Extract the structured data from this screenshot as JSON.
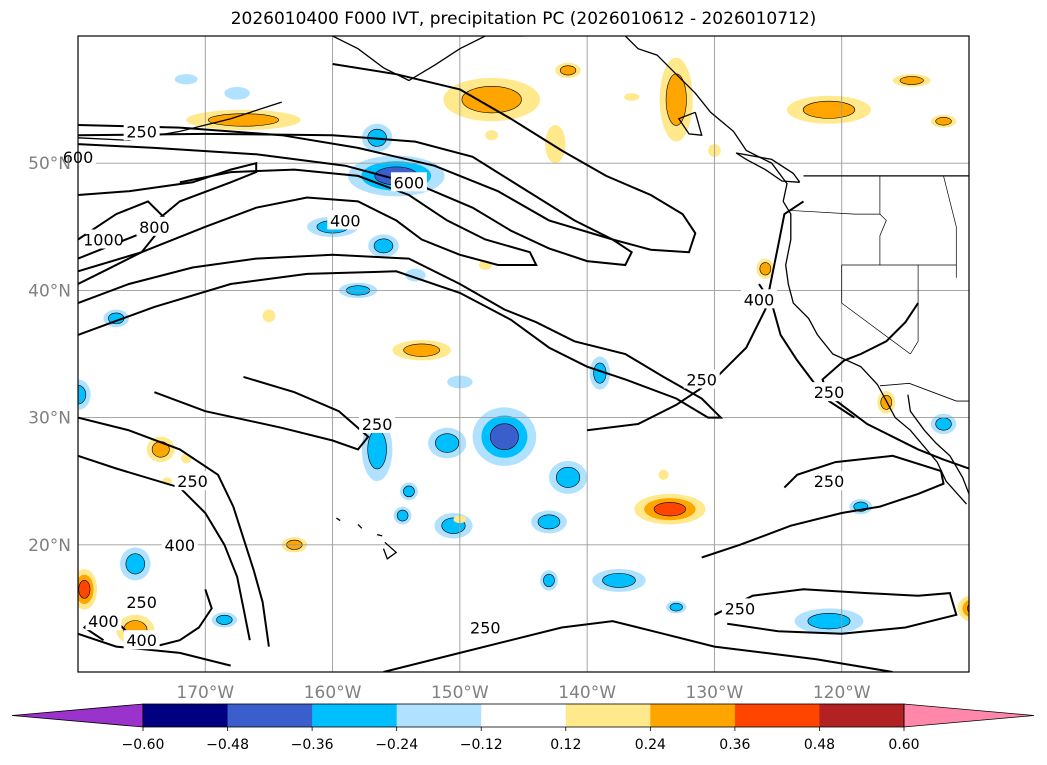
{
  "title": "2026010400 F000 IVT, precipitation PC (2026010612 - 2026010712)",
  "chart_data": {
    "type": "heatmap",
    "x_ticks": [
      "170°W",
      "160°W",
      "150°W",
      "140°W",
      "130°W",
      "120°W"
    ],
    "x_tick_values": [
      -170,
      -160,
      -150,
      -140,
      -130,
      -120
    ],
    "y_ticks": [
      "20°N",
      "30°N",
      "40°N",
      "50°N"
    ],
    "y_tick_values": [
      20,
      30,
      40,
      50
    ],
    "xlim": [
      -180,
      -110
    ],
    "ylim": [
      10,
      60
    ],
    "grid": true,
    "colorbar": {
      "tick_labels": [
        "−0.60",
        "−0.48",
        "−0.36",
        "−0.24",
        "−0.12",
        "0.12",
        "0.24",
        "0.36",
        "0.48",
        "0.60"
      ],
      "levels": [
        -0.6,
        -0.48,
        -0.36,
        -0.24,
        -0.12,
        0.12,
        0.24,
        0.36,
        0.48,
        0.6
      ],
      "colors": [
        "#9933cc",
        "#000080",
        "#3a5fcd",
        "#00bfff",
        "#b0e2ff",
        "#ffffff",
        "#ffe98c",
        "#ffa500",
        "#ff4500",
        "#b22222",
        "#ff88aa"
      ],
      "extend": "both"
    },
    "ivt_contour_labels": [
      {
        "text": "250",
        "lon": -175,
        "lat": 52.5
      },
      {
        "text": "600",
        "lon": -180,
        "lat": 50.5
      },
      {
        "text": "1000",
        "lon": -178,
        "lat": 44
      },
      {
        "text": "800",
        "lon": -174,
        "lat": 45
      },
      {
        "text": "400",
        "lon": -159,
        "lat": 45.5
      },
      {
        "text": "600",
        "lon": -154,
        "lat": 48.5
      },
      {
        "text": "400",
        "lon": -126.5,
        "lat": 39.3
      },
      {
        "text": "250",
        "lon": -131,
        "lat": 33
      },
      {
        "text": "250",
        "lon": -121,
        "lat": 32
      },
      {
        "text": "250",
        "lon": -156.5,
        "lat": 29.5
      },
      {
        "text": "250",
        "lon": -171,
        "lat": 25
      },
      {
        "text": "250",
        "lon": -121,
        "lat": 25
      },
      {
        "text": "400",
        "lon": -172,
        "lat": 20
      },
      {
        "text": "250",
        "lon": -175,
        "lat": 15.5
      },
      {
        "text": "400",
        "lon": -178,
        "lat": 14
      },
      {
        "text": "400",
        "lon": -175,
        "lat": 12.5
      },
      {
        "text": "250",
        "lon": -148,
        "lat": 13.5
      },
      {
        "text": "250",
        "lon": -128,
        "lat": 15
      }
    ],
    "precip_anomaly_blobs": [
      {
        "lon": -155,
        "lat": 49,
        "rx": 3.8,
        "ry": 1.6,
        "value": -0.4
      },
      {
        "lon": -156.5,
        "lat": 52,
        "rx": 1.2,
        "ry": 1.1,
        "value": -0.24
      },
      {
        "lon": -160,
        "lat": 45,
        "rx": 2,
        "ry": 0.8,
        "value": -0.3
      },
      {
        "lon": -156,
        "lat": 43.5,
        "rx": 1.2,
        "ry": 0.9,
        "value": -0.24
      },
      {
        "lon": -158,
        "lat": 40,
        "rx": 1.5,
        "ry": 0.6,
        "value": -0.25
      },
      {
        "lon": -153.5,
        "lat": 41.2,
        "rx": 0.8,
        "ry": 0.5,
        "value": -0.2
      },
      {
        "lon": -177,
        "lat": 37.8,
        "rx": 1,
        "ry": 0.7,
        "value": -0.24
      },
      {
        "lon": -180,
        "lat": 31.8,
        "rx": 1,
        "ry": 1.2,
        "value": -0.24
      },
      {
        "lon": -146.5,
        "lat": 28.5,
        "rx": 2.5,
        "ry": 2.3,
        "value": -0.38
      },
      {
        "lon": -151,
        "lat": 28,
        "rx": 1.5,
        "ry": 1.2,
        "value": -0.35
      },
      {
        "lon": -156.5,
        "lat": 27.5,
        "rx": 1.2,
        "ry": 2.5,
        "value": -0.3
      },
      {
        "lon": -141.5,
        "lat": 25.3,
        "rx": 1.5,
        "ry": 1.3,
        "value": -0.28
      },
      {
        "lon": -139,
        "lat": 33.5,
        "rx": 0.8,
        "ry": 1.3,
        "value": -0.28
      },
      {
        "lon": -150,
        "lat": 32.8,
        "rx": 1,
        "ry": 0.5,
        "value": -0.22
      },
      {
        "lon": -150.5,
        "lat": 21.5,
        "rx": 1.5,
        "ry": 1,
        "value": -0.3
      },
      {
        "lon": -154,
        "lat": 24.2,
        "rx": 0.7,
        "ry": 0.7,
        "value": -0.25
      },
      {
        "lon": -154.5,
        "lat": 22.3,
        "rx": 0.7,
        "ry": 0.7,
        "value": -0.25
      },
      {
        "lon": -143,
        "lat": 21.8,
        "rx": 1.4,
        "ry": 0.9,
        "value": -0.3
      },
      {
        "lon": -137.5,
        "lat": 17.2,
        "rx": 2.1,
        "ry": 0.9,
        "value": -0.35
      },
      {
        "lon": -143,
        "lat": 17.2,
        "rx": 0.7,
        "ry": 0.8,
        "value": -0.24
      },
      {
        "lon": -175.5,
        "lat": 18.5,
        "rx": 1.2,
        "ry": 1.3,
        "value": -0.3
      },
      {
        "lon": -121,
        "lat": 14,
        "rx": 2.7,
        "ry": 1,
        "value": -0.3
      },
      {
        "lon": -118.5,
        "lat": 23,
        "rx": 0.9,
        "ry": 0.6,
        "value": -0.24
      },
      {
        "lon": -133,
        "lat": 15.1,
        "rx": 0.8,
        "ry": 0.5,
        "value": -0.24
      },
      {
        "lon": -168.5,
        "lat": 14.1,
        "rx": 1,
        "ry": 0.6,
        "value": -0.25
      },
      {
        "lon": -167.5,
        "lat": 55.5,
        "rx": 1,
        "ry": 0.5,
        "value": -0.2
      },
      {
        "lon": -171.5,
        "lat": 56.6,
        "rx": 0.9,
        "ry": 0.4,
        "value": -0.18
      },
      {
        "lon": -112,
        "lat": 29.5,
        "rx": 1,
        "ry": 0.8,
        "value": -0.24
      }
    ],
    "precip_positive_blobs": [
      {
        "lon": -167,
        "lat": 53.4,
        "rx": 4.5,
        "ry": 0.8,
        "value": 0.3
      },
      {
        "lon": -147.5,
        "lat": 55,
        "rx": 3.8,
        "ry": 1.7,
        "value": 0.32
      },
      {
        "lon": -141.5,
        "lat": 57.3,
        "rx": 1,
        "ry": 0.6,
        "value": 0.28
      },
      {
        "lon": -136.5,
        "lat": 55.2,
        "rx": 0.6,
        "ry": 0.3,
        "value": 0.2
      },
      {
        "lon": -133,
        "lat": 55,
        "rx": 1.3,
        "ry": 3.3,
        "value": 0.3
      },
      {
        "lon": -121,
        "lat": 54.2,
        "rx": 3.3,
        "ry": 1.1,
        "value": 0.28
      },
      {
        "lon": -114.5,
        "lat": 56.5,
        "rx": 1.5,
        "ry": 0.5,
        "value": 0.25
      },
      {
        "lon": -112,
        "lat": 53.3,
        "rx": 1,
        "ry": 0.5,
        "value": 0.25
      },
      {
        "lon": -142.5,
        "lat": 51.5,
        "rx": 0.8,
        "ry": 1.5,
        "value": 0.22
      },
      {
        "lon": -130,
        "lat": 51,
        "rx": 0.5,
        "ry": 0.5,
        "value": 0.2
      },
      {
        "lon": -147.5,
        "lat": 52.2,
        "rx": 0.5,
        "ry": 0.4,
        "value": 0.18
      },
      {
        "lon": -153,
        "lat": 35.3,
        "rx": 2.3,
        "ry": 0.8,
        "value": 0.32
      },
      {
        "lon": -173.5,
        "lat": 27.5,
        "rx": 1.1,
        "ry": 1,
        "value": 0.35
      },
      {
        "lon": -133.5,
        "lat": 22.8,
        "rx": 2.8,
        "ry": 1.2,
        "value": 0.4
      },
      {
        "lon": -179.5,
        "lat": 16.5,
        "rx": 1,
        "ry": 1.6,
        "value": 0.38
      },
      {
        "lon": -109.5,
        "lat": 15,
        "rx": 1.4,
        "ry": 1.1,
        "value": 0.4
      },
      {
        "lon": -163,
        "lat": 20,
        "rx": 1,
        "ry": 0.6,
        "value": 0.3
      },
      {
        "lon": -175.5,
        "lat": 13.3,
        "rx": 1.5,
        "ry": 1.2,
        "value": 0.3
      },
      {
        "lon": -116.5,
        "lat": 31.2,
        "rx": 0.7,
        "ry": 0.9,
        "value": 0.28
      },
      {
        "lon": -126,
        "lat": 41.7,
        "rx": 0.7,
        "ry": 0.8,
        "value": 0.25
      },
      {
        "lon": -165,
        "lat": 38,
        "rx": 0.5,
        "ry": 0.5,
        "value": 0.2
      },
      {
        "lon": -148,
        "lat": 42,
        "rx": 0.5,
        "ry": 0.4,
        "value": 0.15
      },
      {
        "lon": -150,
        "lat": 22,
        "rx": 0.5,
        "ry": 0.3,
        "value": 0.15
      },
      {
        "lon": -173,
        "lat": 25,
        "rx": 0.4,
        "ry": 0.3,
        "value": 0.15
      },
      {
        "lon": -134,
        "lat": 25.5,
        "rx": 0.4,
        "ry": 0.4,
        "value": 0.2
      },
      {
        "lon": -171.5,
        "lat": 26.8,
        "rx": 0.4,
        "ry": 0.4,
        "value": 0.15
      }
    ]
  }
}
